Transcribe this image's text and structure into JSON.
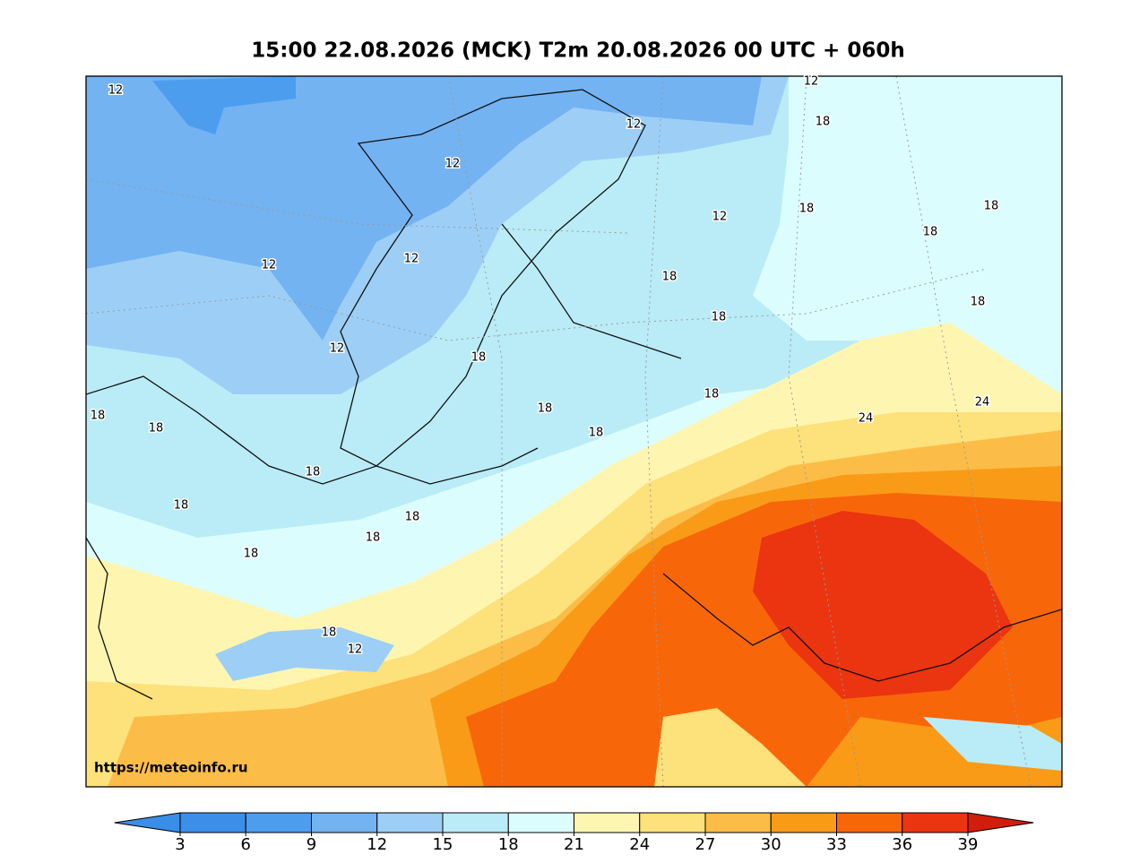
{
  "title": "15:00 22.08.2026 (MCK) T2m 20.08.2026 00 UTC + 060h",
  "watermark": "https://meteoinfo.ru",
  "contour_labels": [
    12,
    12,
    12,
    12,
    12,
    12,
    12,
    12,
    18,
    18,
    18,
    18,
    18,
    18,
    18,
    18,
    18,
    18,
    18,
    18,
    18,
    18,
    18,
    18,
    18,
    18,
    18,
    12,
    24,
    24
  ],
  "colorbar": {
    "ticks": [
      3,
      6,
      9,
      12,
      15,
      18,
      21,
      24,
      27,
      30,
      33,
      36,
      39
    ],
    "colors": [
      "#3a8ee8",
      "#3d8ee9",
      "#4d9def",
      "#74b3f2",
      "#9dcff6",
      "#b9ecf7",
      "#dcfdfd",
      "#fef6b0",
      "#fde17a",
      "#fbbd47",
      "#f99b17",
      "#f8660a",
      "#eb3410",
      "#d11d0b"
    ]
  }
}
